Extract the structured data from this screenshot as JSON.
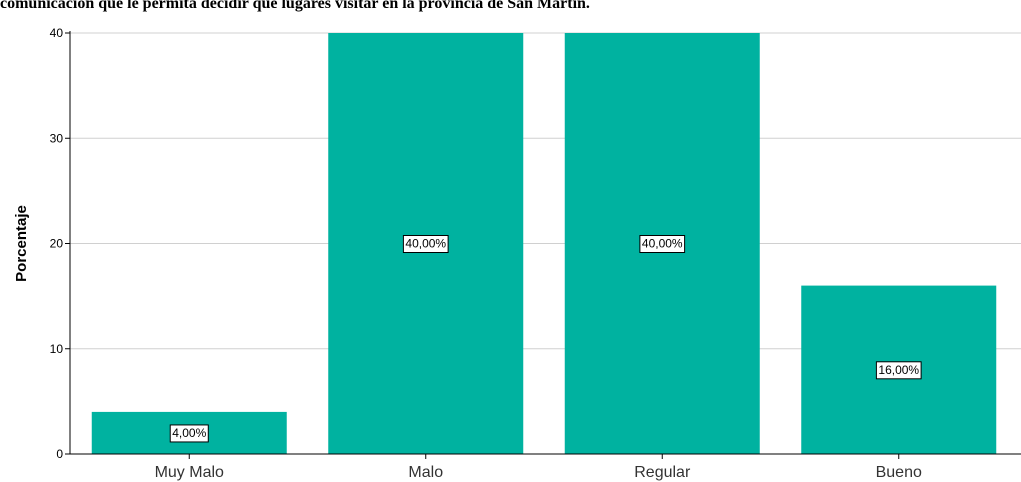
{
  "chart_data": {
    "type": "bar",
    "title": "comunicación que le permita decidir qué lugares visitar en la provincia de San Martin.",
    "categories": [
      "Muy Malo",
      "Malo",
      "Regular",
      "Bueno"
    ],
    "values": [
      4,
      40,
      40,
      16
    ],
    "data_labels": [
      "4,00%",
      "40,00%",
      "40,00%",
      "16,00%"
    ],
    "xlabel": "",
    "ylabel": "Porcentaje",
    "ylim": [
      0,
      40
    ],
    "yticks": [
      "0",
      "10",
      "20",
      "30",
      "40"
    ],
    "grid": true,
    "bar_color": "#00B2A0"
  }
}
